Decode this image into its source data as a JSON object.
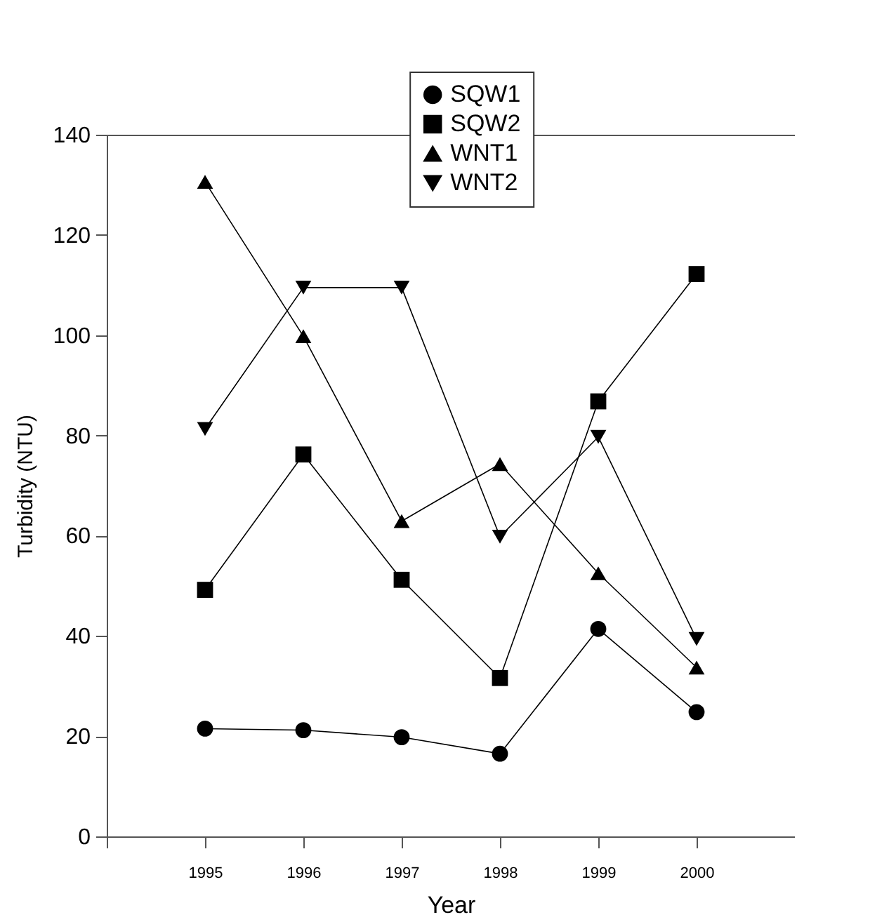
{
  "chart_data": {
    "type": "line",
    "xlabel": "Year",
    "ylabel": "Turbidity (NTU)",
    "x": [
      1995,
      1996,
      1997,
      1998,
      1999,
      2000
    ],
    "xlim": [
      1994,
      2001
    ],
    "xticks": [
      {
        "value": 1994,
        "label": null
      },
      1995,
      1996,
      1997,
      1998,
      1999,
      2000
    ],
    "ylim": [
      0,
      140
    ],
    "yticks": [
      0,
      20,
      40,
      60,
      80,
      100,
      120,
      140
    ],
    "grid": false,
    "legend": "top right",
    "line_style": "solid",
    "series": [
      {
        "name": "SQW1",
        "color": "#000000",
        "marker": "circle",
        "values": [
          21.5,
          21.2,
          19.8,
          16.5,
          41.4,
          24.8
        ]
      },
      {
        "name": "SQW2",
        "color": "#000000",
        "marker": "square",
        "values": [
          49.2,
          76.2,
          51.2,
          31.6,
          86.8,
          112.2
        ]
      },
      {
        "name": "WNT1",
        "color": "#000000",
        "marker": "triangle",
        "values": [
          130.6,
          99.8,
          62.9,
          74.3,
          52.5,
          33.7
        ]
      },
      {
        "name": "WNT2",
        "color": "#000000",
        "marker": "triangle-down",
        "values": [
          81.3,
          109.5,
          109.5,
          59.8,
          79.7,
          39.4
        ]
      }
    ]
  }
}
